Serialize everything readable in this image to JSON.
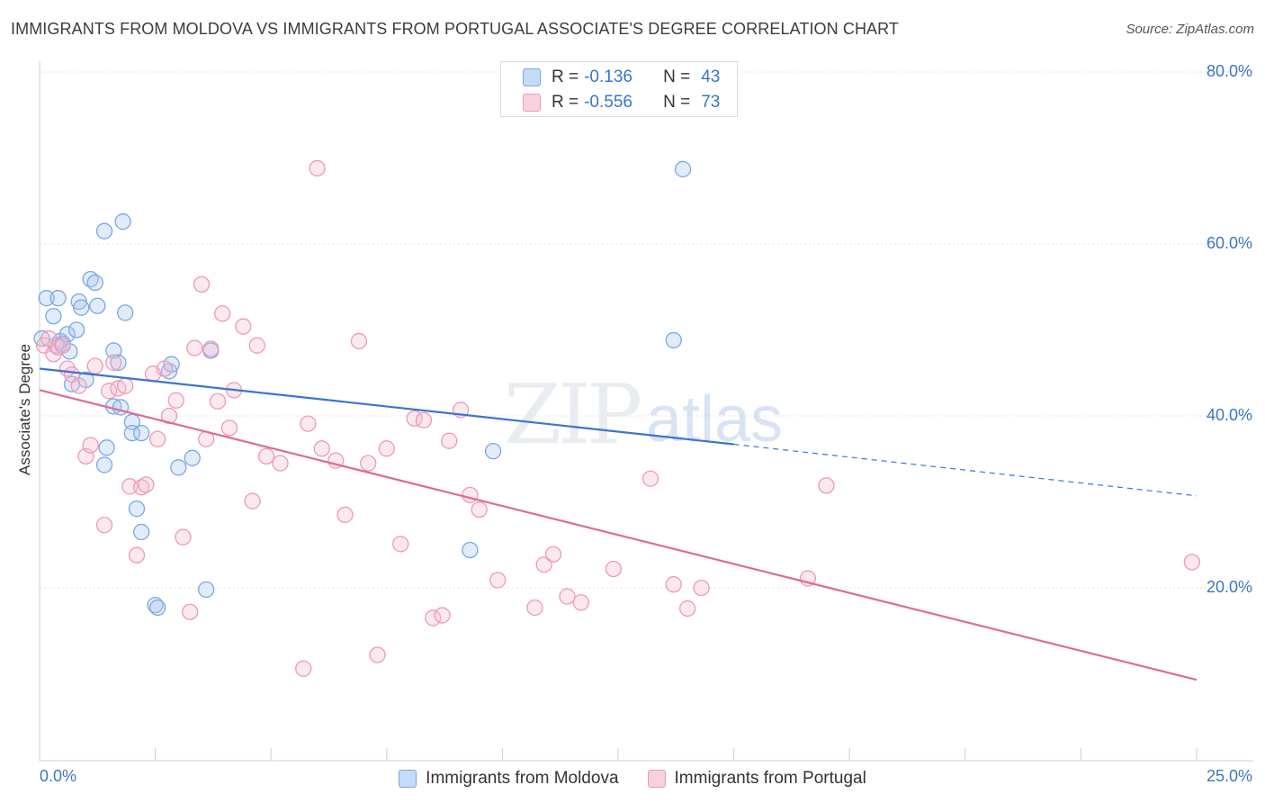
{
  "title": "IMMIGRANTS FROM MOLDOVA VS IMMIGRANTS FROM PORTUGAL ASSOCIATE'S DEGREE CORRELATION CHART",
  "source": "Source: ZipAtlas.com",
  "watermark": {
    "zip": "ZIP",
    "atlas": "atlas"
  },
  "legend": {
    "rows": [
      {
        "r_label": "R =",
        "r_value": "-0.136",
        "n_label": "N =",
        "n_value": "43",
        "color": "#a8c8f0",
        "stroke": "#7aa8e0"
      },
      {
        "r_label": "R =",
        "r_value": "-0.556",
        "n_label": "N =",
        "n_value": "73",
        "color": "#f7bcd0",
        "stroke": "#ec9ab7"
      }
    ]
  },
  "bottom_legend": [
    {
      "label": "Immigrants from Moldova",
      "color": "#a8c8f0",
      "stroke": "#7aa8e0"
    },
    {
      "label": "Immigrants from Portugal",
      "color": "#f7bcd0",
      "stroke": "#ec9ab7"
    }
  ],
  "chart_data": {
    "type": "scatter",
    "title": "IMMIGRANTS FROM MOLDOVA VS IMMIGRANTS FROM PORTUGAL ASSOCIATE'S DEGREE CORRELATION CHART",
    "xlabel": "",
    "ylabel": "Associate's Degree",
    "xlim": [
      0,
      25
    ],
    "ylim": [
      0,
      80
    ],
    "x_tick_labels": [
      "0.0%",
      "25.0%"
    ],
    "y_ticks": [
      20,
      40,
      60,
      80
    ],
    "y_tick_labels": [
      "20.0%",
      "40.0%",
      "60.0%",
      "80.0%"
    ],
    "grid": true,
    "legend_position": "top-center",
    "series": [
      {
        "name": "Immigrants from Moldova",
        "color": "#7aa8e0",
        "line_color": "#3a75d0",
        "trend": {
          "x_start": 0,
          "y_start": 45.5,
          "x_solid_end": 15,
          "y_solid_end": 36.7,
          "x_end": 25,
          "y_end": 30.7
        },
        "points": [
          [
            0.15,
            53.7
          ],
          [
            0.3,
            51.6
          ],
          [
            0.35,
            48.2
          ],
          [
            0.4,
            53.7
          ],
          [
            0.45,
            48.7
          ],
          [
            0.5,
            48.4
          ],
          [
            0.6,
            49.5
          ],
          [
            0.65,
            47.5
          ],
          [
            0.7,
            43.7
          ],
          [
            0.8,
            50.0
          ],
          [
            0.85,
            53.3
          ],
          [
            0.9,
            52.6
          ],
          [
            1.0,
            44.2
          ],
          [
            1.1,
            55.9
          ],
          [
            1.2,
            55.5
          ],
          [
            1.25,
            52.8
          ],
          [
            1.4,
            61.5
          ],
          [
            1.45,
            36.3
          ],
          [
            1.4,
            34.3
          ],
          [
            1.6,
            41.1
          ],
          [
            1.6,
            47.6
          ],
          [
            1.7,
            46.2
          ],
          [
            1.75,
            41.0
          ],
          [
            1.8,
            62.6
          ],
          [
            1.85,
            52.0
          ],
          [
            2.0,
            39.3
          ],
          [
            2.0,
            38.0
          ],
          [
            2.1,
            29.2
          ],
          [
            2.2,
            26.5
          ],
          [
            2.2,
            38.0
          ],
          [
            2.5,
            18.0
          ],
          [
            2.55,
            17.7
          ],
          [
            2.8,
            45.2
          ],
          [
            2.85,
            46.0
          ],
          [
            3.0,
            34.0
          ],
          [
            3.3,
            35.1
          ],
          [
            3.6,
            19.8
          ],
          [
            3.7,
            47.6
          ],
          [
            13.7,
            48.8
          ],
          [
            9.3,
            24.4
          ],
          [
            9.8,
            35.9
          ],
          [
            13.9,
            68.7
          ],
          [
            0.05,
            49.0
          ]
        ]
      },
      {
        "name": "Immigrants from Portugal",
        "color": "#ec9ab7",
        "line_color": "#e0699a",
        "trend": {
          "x_start": 0,
          "y_start": 43.0,
          "x_end": 25,
          "y_end": 9.3
        },
        "points": [
          [
            0.1,
            48.2
          ],
          [
            0.2,
            49.0
          ],
          [
            0.3,
            47.2
          ],
          [
            0.4,
            48.0
          ],
          [
            0.5,
            48.2
          ],
          [
            0.6,
            45.5
          ],
          [
            0.7,
            44.8
          ],
          [
            0.85,
            43.5
          ],
          [
            1.0,
            35.3
          ],
          [
            1.1,
            36.6
          ],
          [
            1.2,
            45.8
          ],
          [
            1.4,
            27.3
          ],
          [
            1.5,
            42.9
          ],
          [
            1.6,
            46.2
          ],
          [
            1.7,
            43.2
          ],
          [
            1.85,
            43.5
          ],
          [
            1.95,
            31.8
          ],
          [
            2.1,
            23.8
          ],
          [
            2.2,
            31.7
          ],
          [
            2.3,
            32.0
          ],
          [
            2.45,
            44.9
          ],
          [
            2.55,
            37.3
          ],
          [
            2.7,
            45.5
          ],
          [
            2.8,
            40.0
          ],
          [
            2.95,
            41.8
          ],
          [
            3.1,
            25.9
          ],
          [
            3.25,
            17.2
          ],
          [
            3.35,
            47.9
          ],
          [
            3.5,
            55.3
          ],
          [
            3.6,
            37.3
          ],
          [
            3.7,
            47.8
          ],
          [
            3.85,
            41.7
          ],
          [
            3.95,
            51.9
          ],
          [
            4.1,
            38.6
          ],
          [
            4.2,
            43.0
          ],
          [
            4.4,
            50.4
          ],
          [
            4.6,
            30.1
          ],
          [
            4.7,
            48.2
          ],
          [
            4.9,
            35.3
          ],
          [
            5.2,
            34.5
          ],
          [
            5.7,
            10.6
          ],
          [
            5.8,
            39.1
          ],
          [
            6.0,
            68.8
          ],
          [
            6.1,
            36.2
          ],
          [
            6.4,
            34.8
          ],
          [
            6.6,
            28.5
          ],
          [
            6.9,
            48.7
          ],
          [
            7.1,
            34.5
          ],
          [
            7.3,
            12.2
          ],
          [
            7.5,
            36.2
          ],
          [
            7.8,
            25.1
          ],
          [
            8.1,
            39.7
          ],
          [
            8.3,
            39.5
          ],
          [
            8.5,
            16.5
          ],
          [
            8.7,
            16.8
          ],
          [
            8.85,
            37.1
          ],
          [
            9.1,
            40.7
          ],
          [
            9.3,
            30.8
          ],
          [
            9.5,
            29.1
          ],
          [
            9.9,
            20.9
          ],
          [
            10.7,
            17.7
          ],
          [
            10.9,
            22.7
          ],
          [
            11.1,
            23.9
          ],
          [
            11.4,
            19.0
          ],
          [
            11.7,
            18.3
          ],
          [
            12.4,
            22.2
          ],
          [
            13.2,
            32.7
          ],
          [
            13.7,
            20.4
          ],
          [
            14.0,
            17.6
          ],
          [
            14.3,
            20.0
          ],
          [
            16.6,
            21.1
          ],
          [
            17.0,
            31.9
          ],
          [
            24.9,
            23.0
          ]
        ]
      }
    ]
  }
}
